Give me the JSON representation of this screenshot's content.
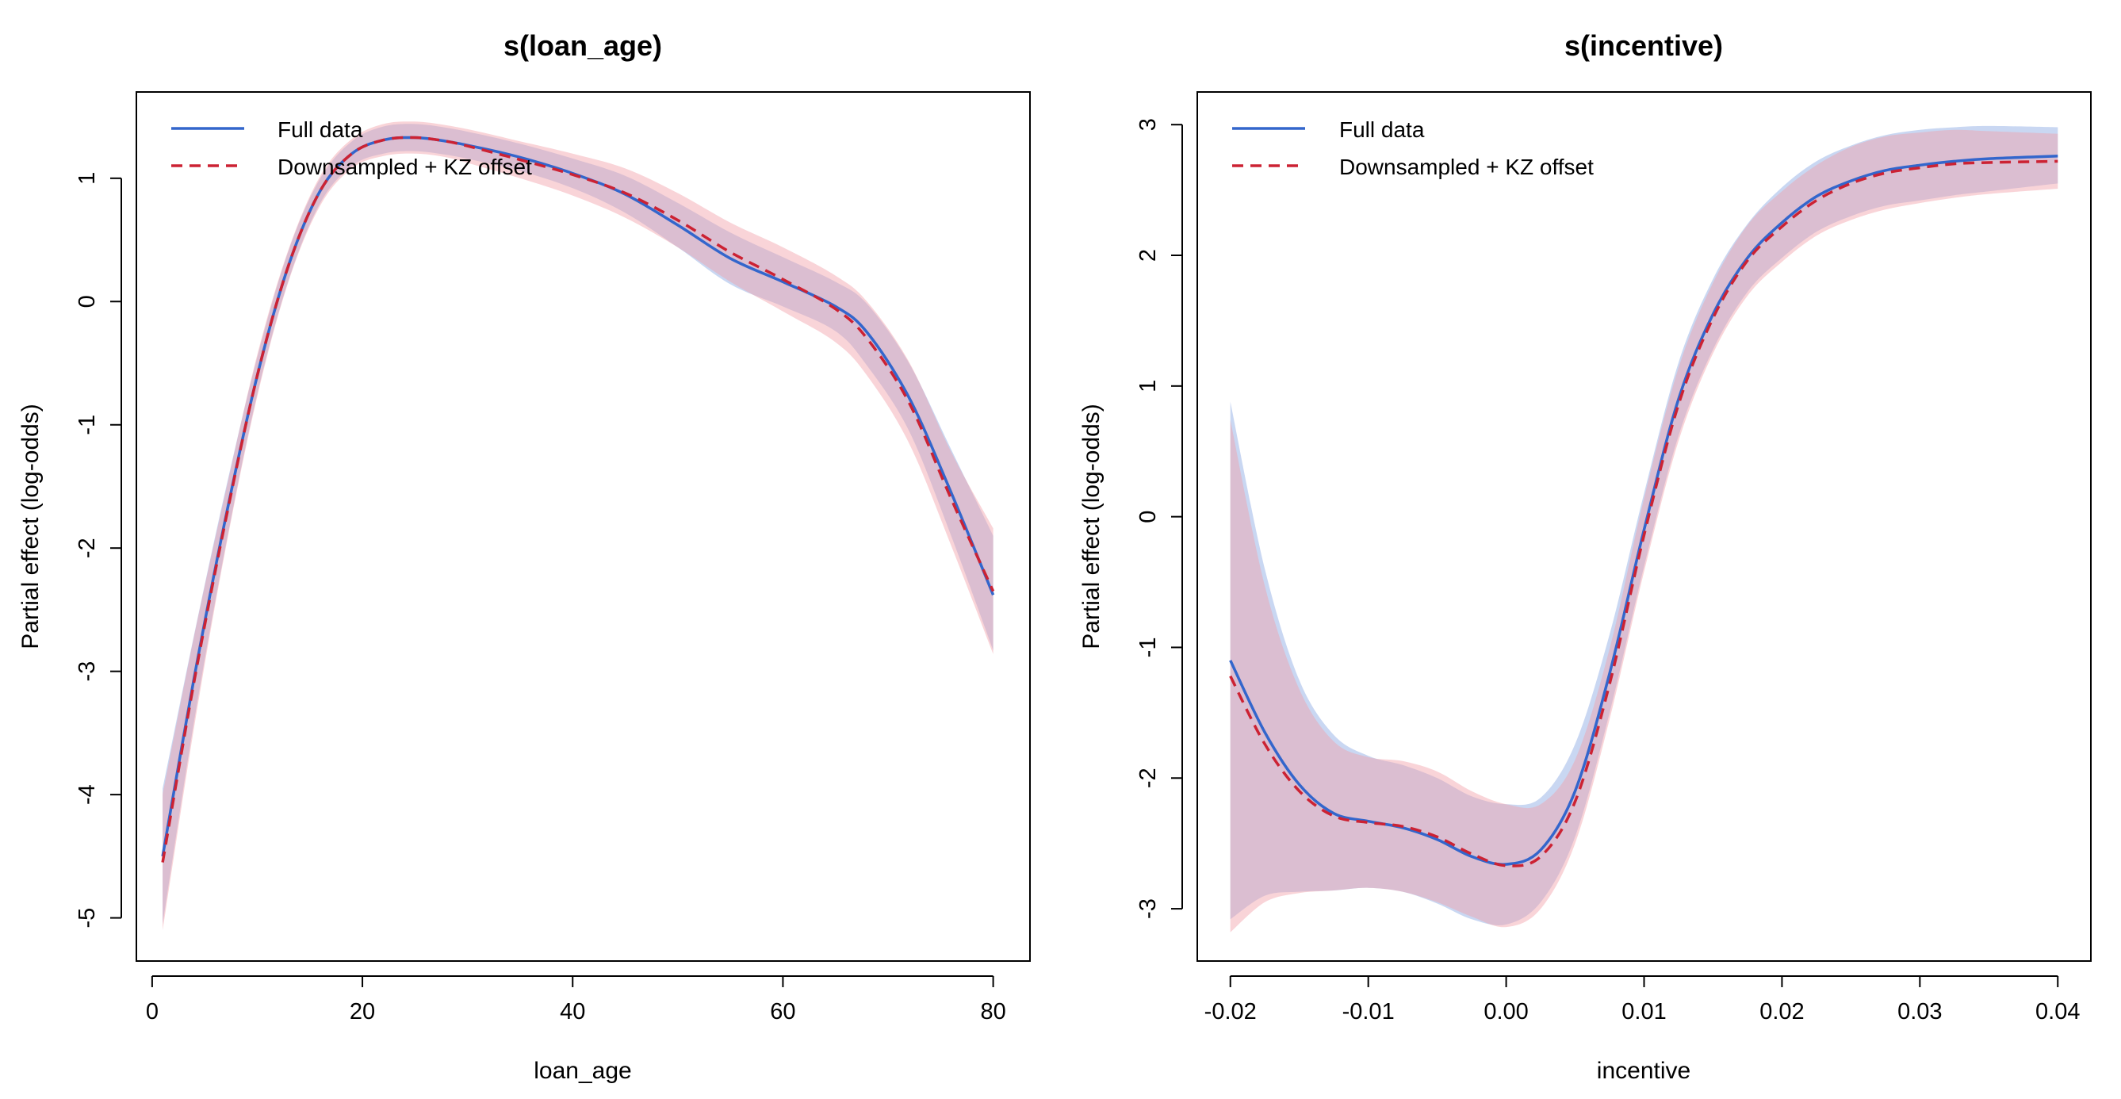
{
  "colors": {
    "full_line": "#3366CC",
    "full_band": "#9DB6E8",
    "down_line": "#CC2233",
    "down_band": "#F2A0A8",
    "frame": "#000000"
  },
  "chart_data": [
    {
      "type": "line",
      "title": "s(loan_age)",
      "xlabel": "loan_age",
      "ylabel": "Partial effect (log-odds)",
      "xlim": [
        -1.5,
        83.5
      ],
      "ylim": [
        -5.35,
        1.7
      ],
      "xticks": [
        0,
        20,
        40,
        60,
        80
      ],
      "xtick_labels": [
        "0",
        "20",
        "40",
        "60",
        "80"
      ],
      "yticks": [
        -5,
        -4,
        -3,
        -2,
        -1,
        0,
        1
      ],
      "ytick_labels": [
        "-5",
        "-4",
        "-3",
        "-2",
        "-1",
        "0",
        "1"
      ],
      "grid": false,
      "legend_position": "top-left",
      "series": [
        {
          "name": "Full data",
          "style": "solid",
          "x": [
            1,
            4,
            7,
            10,
            13,
            16,
            19,
            22,
            25,
            28,
            31,
            35,
            40,
            45,
            50,
            55,
            60,
            65,
            68,
            72,
            76,
            80
          ],
          "y": [
            -4.5,
            -3.05,
            -1.75,
            -0.6,
            0.3,
            0.9,
            1.2,
            1.31,
            1.33,
            1.3,
            1.25,
            1.17,
            1.04,
            0.87,
            0.62,
            0.35,
            0.16,
            -0.04,
            -0.25,
            -0.78,
            -1.55,
            -2.38
          ],
          "lower": [
            -5.05,
            -3.4,
            -1.98,
            -0.75,
            0.18,
            0.8,
            1.1,
            1.2,
            1.22,
            1.19,
            1.14,
            1.06,
            0.92,
            0.72,
            0.44,
            0.14,
            -0.04,
            -0.24,
            -0.52,
            -1.05,
            -1.9,
            -2.83
          ],
          "upper": [
            -3.95,
            -2.7,
            -1.52,
            -0.45,
            0.42,
            1.0,
            1.3,
            1.42,
            1.44,
            1.41,
            1.36,
            1.28,
            1.16,
            1.02,
            0.8,
            0.56,
            0.36,
            0.16,
            -0.02,
            -0.5,
            -1.2,
            -1.9
          ]
        },
        {
          "name": "Downsampled + KZ offset",
          "style": "dashed",
          "x": [
            1,
            4,
            7,
            10,
            13,
            16,
            19,
            22,
            25,
            28,
            31,
            35,
            40,
            45,
            50,
            55,
            60,
            65,
            68,
            72,
            76,
            80
          ],
          "y": [
            -4.55,
            -3.08,
            -1.77,
            -0.6,
            0.3,
            0.9,
            1.2,
            1.31,
            1.33,
            1.3,
            1.24,
            1.15,
            1.03,
            0.88,
            0.66,
            0.4,
            0.18,
            -0.06,
            -0.3,
            -0.82,
            -1.6,
            -2.35
          ],
          "lower": [
            -5.1,
            -3.45,
            -2.0,
            -0.77,
            0.17,
            0.78,
            1.08,
            1.18,
            1.2,
            1.17,
            1.1,
            1.0,
            0.86,
            0.68,
            0.44,
            0.16,
            -0.08,
            -0.33,
            -0.6,
            -1.15,
            -1.98,
            -2.86
          ],
          "upper": [
            -4.0,
            -2.71,
            -1.54,
            -0.43,
            0.43,
            1.02,
            1.32,
            1.44,
            1.46,
            1.43,
            1.38,
            1.3,
            1.2,
            1.08,
            0.88,
            0.64,
            0.44,
            0.21,
            0.0,
            -0.49,
            -1.22,
            -1.84
          ]
        }
      ],
      "legend": [
        "Full data",
        "Downsampled + KZ offset"
      ]
    },
    {
      "type": "line",
      "title": "s(incentive)",
      "xlabel": "incentive",
      "ylabel": "Partial effect (log-odds)",
      "xlim": [
        -0.0224,
        0.0424
      ],
      "ylim": [
        -3.4,
        3.25
      ],
      "xticks": [
        -0.02,
        -0.01,
        0.0,
        0.01,
        0.02,
        0.03,
        0.04
      ],
      "xtick_labels": [
        "-0.02",
        "-0.01",
        "0.00",
        "0.01",
        "0.02",
        "0.03",
        "0.04"
      ],
      "yticks": [
        -3,
        -2,
        -1,
        0,
        1,
        2,
        3
      ],
      "ytick_labels": [
        "-3",
        "-2",
        "-1",
        "0",
        "1",
        "2",
        "3"
      ],
      "grid": false,
      "legend_position": "top-left",
      "series": [
        {
          "name": "Full data",
          "style": "solid",
          "x": [
            -0.02,
            -0.0175,
            -0.015,
            -0.0125,
            -0.01,
            -0.0075,
            -0.005,
            -0.0025,
            0.0,
            0.0025,
            0.005,
            0.0075,
            0.01,
            0.0125,
            0.015,
            0.0175,
            0.02,
            0.0225,
            0.025,
            0.0275,
            0.03,
            0.0325,
            0.035,
            0.04
          ],
          "y": [
            -1.1,
            -1.65,
            -2.05,
            -2.27,
            -2.33,
            -2.38,
            -2.47,
            -2.6,
            -2.66,
            -2.55,
            -2.1,
            -1.2,
            -0.1,
            0.9,
            1.55,
            1.98,
            2.25,
            2.45,
            2.57,
            2.65,
            2.69,
            2.72,
            2.74,
            2.76
          ],
          "lower": [
            -3.08,
            -2.9,
            -2.87,
            -2.86,
            -2.84,
            -2.87,
            -2.96,
            -3.08,
            -3.12,
            -2.95,
            -2.45,
            -1.5,
            -0.38,
            0.62,
            1.28,
            1.72,
            1.98,
            2.18,
            2.3,
            2.38,
            2.42,
            2.46,
            2.49,
            2.55
          ],
          "upper": [
            0.88,
            -0.4,
            -1.25,
            -1.67,
            -1.83,
            -1.9,
            -2.0,
            -2.14,
            -2.2,
            -2.15,
            -1.74,
            -0.9,
            0.18,
            1.18,
            1.82,
            2.24,
            2.52,
            2.72,
            2.84,
            2.92,
            2.96,
            2.98,
            2.99,
            2.98
          ]
        },
        {
          "name": "Downsampled + KZ offset",
          "style": "dashed",
          "x": [
            -0.02,
            -0.0175,
            -0.015,
            -0.0125,
            -0.01,
            -0.0075,
            -0.005,
            -0.0025,
            0.0,
            0.0025,
            0.005,
            0.0075,
            0.01,
            0.0125,
            0.015,
            0.0175,
            0.02,
            0.0225,
            0.025,
            0.0275,
            0.03,
            0.0325,
            0.035,
            0.04
          ],
          "y": [
            -1.22,
            -1.74,
            -2.1,
            -2.29,
            -2.34,
            -2.37,
            -2.45,
            -2.58,
            -2.67,
            -2.6,
            -2.18,
            -1.28,
            -0.14,
            0.86,
            1.52,
            1.96,
            2.22,
            2.42,
            2.55,
            2.63,
            2.67,
            2.7,
            2.71,
            2.72
          ],
          "lower": [
            -3.18,
            -2.95,
            -2.88,
            -2.86,
            -2.84,
            -2.87,
            -2.95,
            -3.06,
            -3.14,
            -3.0,
            -2.5,
            -1.55,
            -0.42,
            0.58,
            1.25,
            1.69,
            1.95,
            2.15,
            2.27,
            2.35,
            2.4,
            2.44,
            2.47,
            2.51
          ],
          "upper": [
            0.74,
            -0.53,
            -1.32,
            -1.72,
            -1.84,
            -1.87,
            -1.95,
            -2.1,
            -2.2,
            -2.2,
            -1.86,
            -1.01,
            0.14,
            1.14,
            1.79,
            2.23,
            2.49,
            2.69,
            2.83,
            2.91,
            2.94,
            2.96,
            2.95,
            2.93
          ]
        }
      ],
      "legend": [
        "Full data",
        "Downsampled + KZ offset"
      ]
    }
  ]
}
